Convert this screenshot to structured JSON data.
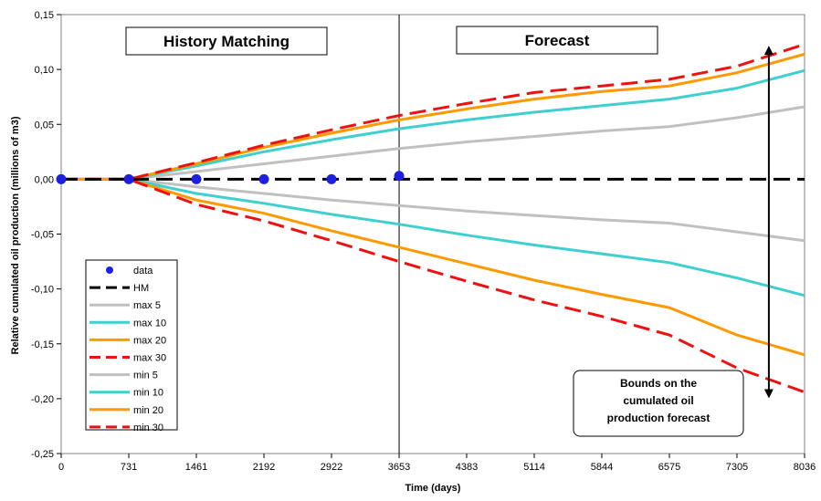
{
  "chart_data": {
    "type": "line",
    "xlabel": "Time (days)",
    "ylabel": "Relative cumulated oil production (millions of m3)",
    "x_ticks": [
      "0",
      "731",
      "1461",
      "2192",
      "2922",
      "3653",
      "4383",
      "5114",
      "5844",
      "6575",
      "7305",
      "8036"
    ],
    "x_tick_values": [
      0,
      731,
      1461,
      2192,
      2922,
      3653,
      4383,
      5114,
      5844,
      6575,
      7305,
      8036
    ],
    "y_ticks": [
      "0,15",
      "0,10",
      "0,05",
      "0,00",
      "-0,05",
      "-0,10",
      "-0,15",
      "-0,20",
      "-0,25"
    ],
    "y_tick_values": [
      0.15,
      0.1,
      0.05,
      0.0,
      -0.05,
      -0.1,
      -0.15,
      -0.2,
      -0.25
    ],
    "xlim": [
      0,
      8036
    ],
    "ylim": [
      -0.25,
      0.15
    ],
    "grid": false,
    "legend_position": "bottom-left",
    "section_labels": [
      "History Matching",
      "Forecast"
    ],
    "divider_x": 3653,
    "annotation": {
      "lines": [
        "Bounds on the",
        "cumulated oil",
        "production forecast"
      ],
      "arrow_x": 7650,
      "arrow_y": [
        0.12,
        -0.198
      ]
    },
    "colors": {
      "data": "#1f1fe0",
      "HM": "#000000",
      "gray": "#c0c0c0",
      "cyan": "#3fcfcf",
      "orange": "#ff9900",
      "red": "#ee1111"
    },
    "series": [
      {
        "name": "data",
        "kind": "points",
        "color": "#1f1fe0",
        "x": [
          0,
          731,
          1461,
          2192,
          2922,
          3653
        ],
        "y": [
          0.0,
          0.0,
          0.0,
          0.0,
          0.0,
          0.003
        ]
      },
      {
        "name": "HM",
        "kind": "line",
        "color": "#000000",
        "dash": "dash",
        "x": [
          0,
          8036
        ],
        "y": [
          0.0,
          0.0
        ]
      },
      {
        "name": "max 5",
        "kind": "line",
        "color": "#c0c0c0",
        "dash": "solid",
        "x": [
          0,
          731,
          1461,
          2192,
          2922,
          3653,
          4383,
          5114,
          5844,
          6575,
          7305,
          8036
        ],
        "y": [
          0,
          0,
          0.007,
          0.014,
          0.021,
          0.028,
          0.034,
          0.039,
          0.044,
          0.048,
          0.056,
          0.066
        ]
      },
      {
        "name": "max 10",
        "kind": "line",
        "color": "#3fcfcf",
        "dash": "solid",
        "x": [
          0,
          731,
          1461,
          2192,
          2922,
          3653,
          4383,
          5114,
          5844,
          6575,
          7305,
          8036
        ],
        "y": [
          0,
          0,
          0.012,
          0.025,
          0.036,
          0.046,
          0.054,
          0.061,
          0.067,
          0.073,
          0.083,
          0.099
        ]
      },
      {
        "name": "max 20",
        "kind": "line",
        "color": "#ff9900",
        "dash": "solid",
        "x": [
          0,
          731,
          1461,
          2192,
          2922,
          3653,
          4383,
          5114,
          5844,
          6575,
          7305,
          8036
        ],
        "y": [
          0,
          0,
          0.014,
          0.029,
          0.042,
          0.054,
          0.064,
          0.073,
          0.08,
          0.085,
          0.097,
          0.114
        ]
      },
      {
        "name": "max 30",
        "kind": "line",
        "color": "#ee1111",
        "dash": "dash",
        "x": [
          0,
          731,
          1461,
          2192,
          2922,
          3653,
          4383,
          5114,
          5844,
          6575,
          7305,
          8036
        ],
        "y": [
          0,
          0,
          0.015,
          0.031,
          0.045,
          0.058,
          0.069,
          0.079,
          0.085,
          0.091,
          0.103,
          0.123
        ]
      },
      {
        "name": "min 5",
        "kind": "line",
        "color": "#c0c0c0",
        "dash": "solid",
        "x": [
          0,
          731,
          1461,
          2192,
          2922,
          3653,
          4383,
          5114,
          5844,
          6575,
          7305,
          8036
        ],
        "y": [
          0,
          0,
          -0.007,
          -0.013,
          -0.019,
          -0.024,
          -0.029,
          -0.033,
          -0.037,
          -0.04,
          -0.048,
          -0.056
        ]
      },
      {
        "name": "min 10",
        "kind": "line",
        "color": "#3fcfcf",
        "dash": "solid",
        "x": [
          0,
          731,
          1461,
          2192,
          2922,
          3653,
          4383,
          5114,
          5844,
          6575,
          7305,
          8036
        ],
        "y": [
          0,
          0,
          -0.013,
          -0.022,
          -0.032,
          -0.041,
          -0.051,
          -0.06,
          -0.068,
          -0.076,
          -0.09,
          -0.106
        ]
      },
      {
        "name": "min 20",
        "kind": "line",
        "color": "#ff9900",
        "dash": "solid",
        "x": [
          0,
          731,
          1461,
          2192,
          2922,
          3653,
          4383,
          5114,
          5844,
          6575,
          7305,
          8036
        ],
        "y": [
          0,
          0,
          -0.019,
          -0.031,
          -0.047,
          -0.062,
          -0.077,
          -0.092,
          -0.105,
          -0.117,
          -0.142,
          -0.16
        ]
      },
      {
        "name": "min 30",
        "kind": "line",
        "color": "#ee1111",
        "dash": "dash",
        "x": [
          0,
          731,
          1461,
          2192,
          2922,
          3653,
          4383,
          5114,
          5844,
          6575,
          7305,
          8036
        ],
        "y": [
          0,
          0,
          -0.023,
          -0.038,
          -0.056,
          -0.075,
          -0.093,
          -0.11,
          -0.125,
          -0.142,
          -0.172,
          -0.194
        ]
      }
    ]
  }
}
